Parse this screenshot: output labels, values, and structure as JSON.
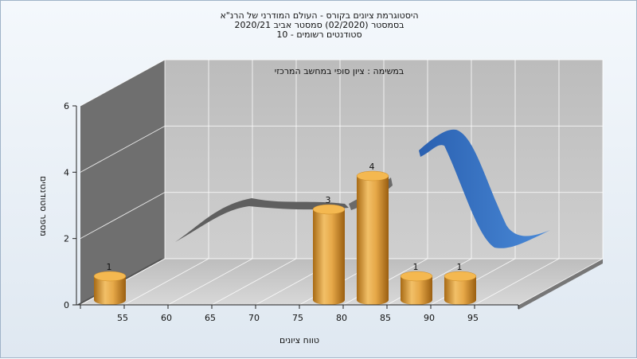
{
  "chart_data": {
    "type": "bar",
    "title_lines": [
      "היסטוגרמת ציונים בקורס - העולם המודרני של הרנ\"א",
      "בסמסטר  (02/2020)  סמסטר אביב 2020/21",
      "סטודנטים רשומים - 10"
    ],
    "subtitle": "במשימה : ציון סופי במחשב המרכזי",
    "xlabel": "טווח ציונים",
    "ylabel": "מספר סטודנטים",
    "x_ticks": [
      "55",
      "60",
      "65",
      "70",
      "75",
      "80",
      "85",
      "90",
      "95"
    ],
    "y_ticks": [
      "0",
      "2",
      "4",
      "6"
    ],
    "ylim": [
      0,
      6
    ],
    "xlim": [
      50,
      100
    ],
    "bars": [
      {
        "x": 55,
        "value": 1,
        "label": "1"
      },
      {
        "x": 80,
        "value": 3,
        "label": "3"
      },
      {
        "x": 85,
        "value": 4,
        "label": "4"
      },
      {
        "x": 90,
        "value": 1,
        "label": "1"
      },
      {
        "x": 95,
        "value": 1,
        "label": "1"
      }
    ],
    "bar_color": "#e0a040",
    "curve_color": "#3a78c8",
    "grid": true
  }
}
